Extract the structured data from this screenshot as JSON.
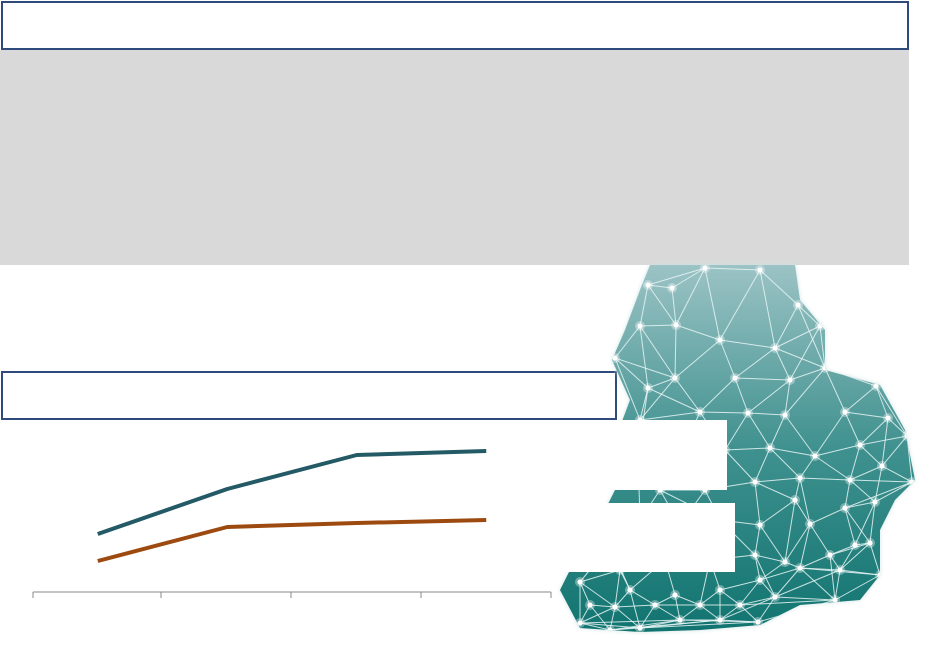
{
  "chart_data": {
    "type": "line",
    "categories": [
      null,
      null,
      null,
      null
    ],
    "series": [
      {
        "color": "#235a66",
        "values": [
          58,
          103,
          137,
          141
        ]
      },
      {
        "color": "#9c4a10",
        "values": [
          31,
          65,
          69,
          72
        ]
      }
    ],
    "ylim": [
      0,
      170
    ]
  }
}
